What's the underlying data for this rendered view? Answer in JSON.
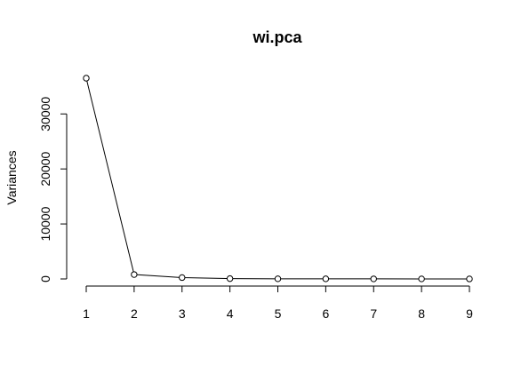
{
  "chart_data": {
    "type": "line",
    "title": "wi.pca",
    "xlabel": "",
    "ylabel": "Variances",
    "x": [
      1,
      2,
      3,
      4,
      5,
      6,
      7,
      8,
      9
    ],
    "values": [
      36500,
      800,
      250,
      60,
      30,
      20,
      15,
      10,
      5
    ],
    "xlim": [
      1,
      9
    ],
    "ylim": [
      0,
      36500
    ],
    "x_ticks": [
      "1",
      "2",
      "3",
      "4",
      "5",
      "6",
      "7",
      "8",
      "9"
    ],
    "y_ticks": [
      0,
      10000,
      20000,
      30000
    ],
    "y_tick_labels": [
      "0",
      "10000",
      "20000",
      "30000"
    ],
    "grid": false,
    "marker": "open-circle"
  }
}
